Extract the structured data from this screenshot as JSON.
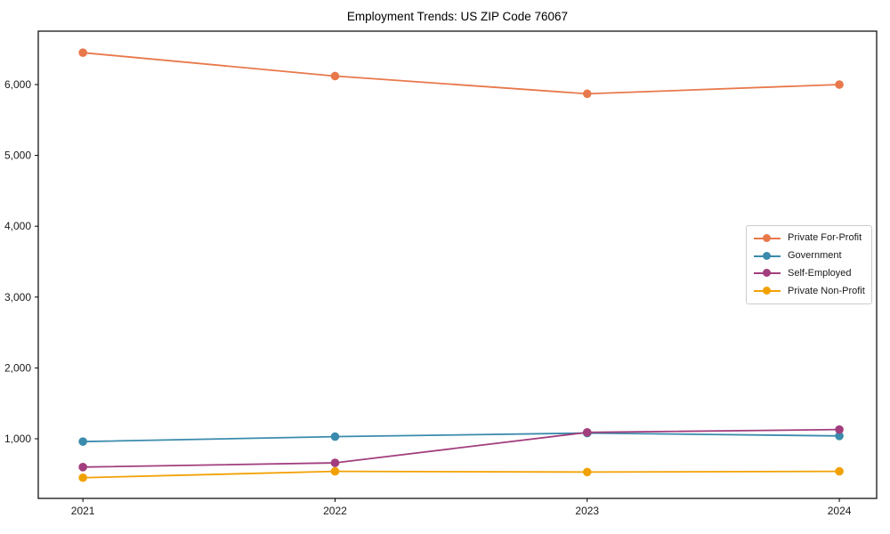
{
  "chart_data": {
    "type": "line",
    "title": "Employment Trends: US ZIP Code 76067",
    "x": [
      2021,
      2022,
      2023,
      2024
    ],
    "x_tick_labels": [
      "2021",
      "2022",
      "2023",
      "2024"
    ],
    "series": [
      {
        "name": "Private For-Profit",
        "color": "#E8784B",
        "values": [
          6450,
          6120,
          5870,
          6000
        ]
      },
      {
        "name": "Government",
        "color": "#3A8BAD",
        "values": [
          960,
          1030,
          1080,
          1040
        ]
      },
      {
        "name": "Self-Employed",
        "color": "#A23E7D",
        "values": [
          600,
          660,
          1090,
          1130
        ]
      },
      {
        "name": "Private Non-Profit",
        "color": "#F2A104",
        "values": [
          450,
          540,
          530,
          540
        ]
      }
    ],
    "y_ticks": [
      1000,
      2000,
      3000,
      4000,
      5000,
      6000
    ],
    "y_tick_labels": [
      "1,000",
      "2,000",
      "3,000",
      "4,000",
      "5,000",
      "6,000"
    ],
    "xlim": [
      2020.823,
      2024.148
    ],
    "ylim": [
      158,
      6754
    ],
    "xlabel": "",
    "ylabel": "",
    "grid": false,
    "legend_position": "center-right",
    "axis_color": "#000000",
    "tick_label_color": "#1a1a1a"
  }
}
